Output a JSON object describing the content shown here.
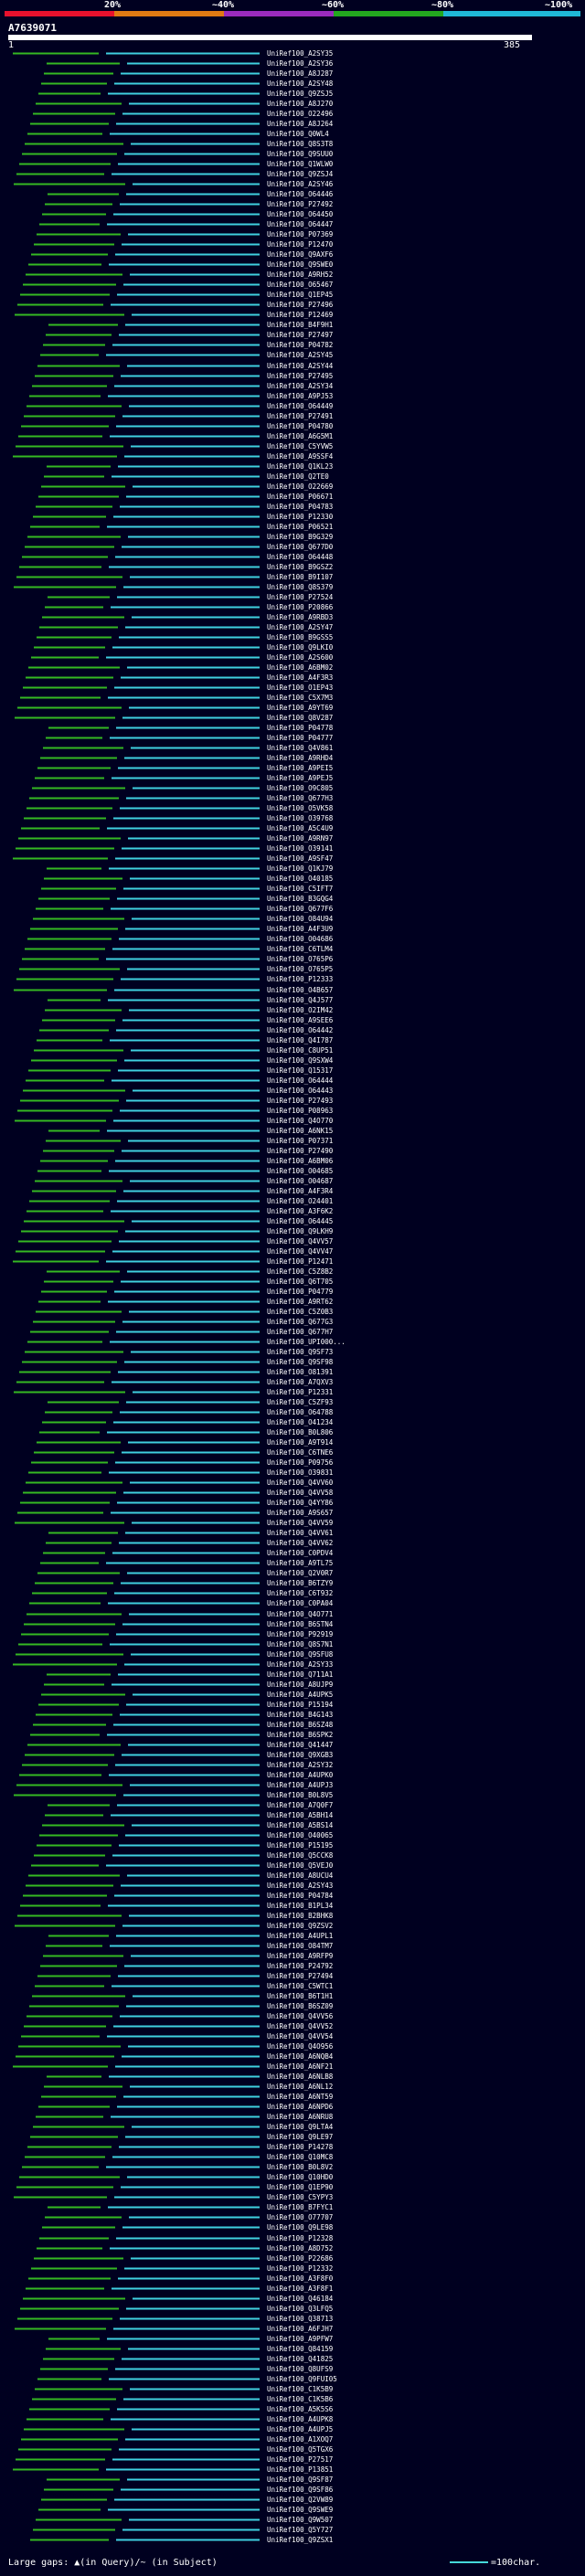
{
  "legend": {
    "scale_labels": [
      "20%",
      "~40%",
      "~60%",
      "~80%",
      "~100%"
    ],
    "scale_colors": [
      "#e8112d",
      "#e07a13",
      "#9a2bbd",
      "#23a81f",
      "#1fb8d6"
    ]
  },
  "header": {
    "query_id": "A7639071",
    "ruler_start": "1",
    "ruler_end": "385"
  },
  "hits": [
    {
      "label": "UniRef100_A2SY35",
      "color": "green"
    },
    {
      "label": "UniRef100_A2SY36",
      "color": "green"
    },
    {
      "label": "UniRef100_A8J287",
      "color": "green"
    },
    {
      "label": "UniRef100_A2SY48",
      "color": "green"
    },
    {
      "label": "UniRef100_Q9ZSJ5",
      "color": "green"
    },
    {
      "label": "UniRef100_A8J270",
      "color": "green"
    },
    {
      "label": "UniRef100_O22496",
      "color": "green"
    },
    {
      "label": "UniRef100_A8J264",
      "color": "green"
    },
    {
      "label": "UniRef100_Q0WL4",
      "color": "green"
    },
    {
      "label": "UniRef100_Q8S3T8",
      "color": "green"
    },
    {
      "label": "UniRef100_Q9SUU0",
      "color": "green"
    },
    {
      "label": "UniRef100_Q1WLW0",
      "color": "green"
    },
    {
      "label": "UniRef100_Q9ZSJ4",
      "color": "green"
    },
    {
      "label": "UniRef100_A2SY46",
      "color": "green"
    },
    {
      "label": "UniRef100_O64446",
      "color": "green"
    },
    {
      "label": "UniRef100_P27492",
      "color": "green"
    },
    {
      "label": "UniRef100_O64450",
      "color": "green"
    },
    {
      "label": "UniRef100_O64447",
      "color": "green"
    },
    {
      "label": "UniRef100_P07369",
      "color": "green"
    },
    {
      "label": "UniRef100_P12470",
      "color": "green"
    },
    {
      "label": "UniRef100_Q9AXF6",
      "color": "green"
    },
    {
      "label": "UniRef100_Q9SWE0",
      "color": "green"
    },
    {
      "label": "UniRef100_A9RH52",
      "color": "green"
    },
    {
      "label": "UniRef100_O65467",
      "color": "green"
    },
    {
      "label": "UniRef100_Q1EP45",
      "color": "green"
    },
    {
      "label": "UniRef100_P27496",
      "color": "green"
    },
    {
      "label": "UniRef100_P12469",
      "color": "green"
    },
    {
      "label": "UniRef100_B4F9H1",
      "color": "green"
    },
    {
      "label": "UniRef100_P27497",
      "color": "green"
    },
    {
      "label": "UniRef100_P04782",
      "color": "green"
    },
    {
      "label": "UniRef100_A2SY45",
      "color": "green"
    },
    {
      "label": "UniRef100_A2SY44",
      "color": "green"
    },
    {
      "label": "UniRef100_P27495",
      "color": "green"
    },
    {
      "label": "UniRef100_A2SY34",
      "color": "green"
    },
    {
      "label": "UniRef100_A9PJ53",
      "color": "green"
    },
    {
      "label": "UniRef100_O64449",
      "color": "green"
    },
    {
      "label": "UniRef100_P27491",
      "color": "green"
    },
    {
      "label": "UniRef100_P04780",
      "color": "green"
    },
    {
      "label": "UniRef100_A6G5M1",
      "color": "green"
    },
    {
      "label": "UniRef100_C5YVW5",
      "color": "green"
    },
    {
      "label": "UniRef100_A9SSF4",
      "color": "green"
    },
    {
      "label": "UniRef100_Q1KL23",
      "color": "green"
    },
    {
      "label": "UniRef100_Q2TE0",
      "color": "green"
    },
    {
      "label": "UniRef100_O22669",
      "color": "green"
    },
    {
      "label": "UniRef100_P06671",
      "color": "green"
    },
    {
      "label": "UniRef100_P04783",
      "color": "green"
    },
    {
      "label": "UniRef100_P12330",
      "color": "green"
    },
    {
      "label": "UniRef100_P06521",
      "color": "green"
    },
    {
      "label": "UniRef100_B9G329",
      "color": "green"
    },
    {
      "label": "UniRef100_Q677D0",
      "color": "green"
    },
    {
      "label": "UniRef100_O64448",
      "color": "green"
    },
    {
      "label": "UniRef100_B9GSZ2",
      "color": "green"
    },
    {
      "label": "UniRef100_B9I107",
      "color": "green"
    },
    {
      "label": "UniRef100_Q8S379",
      "color": "green"
    },
    {
      "label": "UniRef100_P27524",
      "color": "green"
    },
    {
      "label": "UniRef100_P20866",
      "color": "green"
    },
    {
      "label": "UniRef100_A9RBD3",
      "color": "green"
    },
    {
      "label": "UniRef100_A2SY47",
      "color": "green"
    },
    {
      "label": "UniRef100_B9GSS5",
      "color": "green"
    },
    {
      "label": "UniRef100_Q9LKI0",
      "color": "green"
    },
    {
      "label": "UniRef100_A2S600",
      "color": "green"
    },
    {
      "label": "UniRef100_A6BM02",
      "color": "green"
    },
    {
      "label": "UniRef100_A4F3R3",
      "color": "green"
    },
    {
      "label": "UniRef100_O1EP43",
      "color": "green"
    },
    {
      "label": "UniRef100_C5X7M3",
      "color": "green"
    },
    {
      "label": "UniRef100_A9YT69",
      "color": "green"
    },
    {
      "label": "UniRef100_Q8V287",
      "color": "green"
    },
    {
      "label": "UniRef100_P04778",
      "color": "green"
    },
    {
      "label": "UniRef100_P04777",
      "color": "green"
    },
    {
      "label": "UniRef100_Q4V861",
      "color": "green"
    },
    {
      "label": "UniRef100_A9RHD4",
      "color": "green"
    },
    {
      "label": "UniRef100_A9PEI5",
      "color": "green"
    },
    {
      "label": "UniRef100_A9PEJ5",
      "color": "green"
    },
    {
      "label": "UniRef100_O9C805",
      "color": "green"
    },
    {
      "label": "UniRef100_Q677H3",
      "color": "green"
    },
    {
      "label": "UniRef100_O5VK58",
      "color": "green"
    },
    {
      "label": "UniRef100_O39768",
      "color": "green"
    },
    {
      "label": "UniRef100_A5C4U9",
      "color": "green"
    },
    {
      "label": "UniRef100_A9RN97",
      "color": "green"
    },
    {
      "label": "UniRef100_O39141",
      "color": "green"
    },
    {
      "label": "UniRef100_A9SF47",
      "color": "green"
    },
    {
      "label": "UniRef100_Q1KJ79",
      "color": "green"
    },
    {
      "label": "UniRef100_O40185",
      "color": "green"
    },
    {
      "label": "UniRef100_C5IFT7",
      "color": "green"
    },
    {
      "label": "UniRef100_B3GQG4",
      "color": "green"
    },
    {
      "label": "UniRef100_Q677F6",
      "color": "green"
    },
    {
      "label": "UniRef100_O84U94",
      "color": "green"
    },
    {
      "label": "UniRef100_A4F3U9",
      "color": "green"
    },
    {
      "label": "UniRef100_O04686",
      "color": "green"
    },
    {
      "label": "UniRef100_C6TLM4",
      "color": "green"
    },
    {
      "label": "UniRef100_O765P6",
      "color": "green"
    },
    {
      "label": "UniRef100_O765P5",
      "color": "green"
    },
    {
      "label": "UniRef100_P12333",
      "color": "green"
    },
    {
      "label": "UniRef100_O4B657",
      "color": "green"
    },
    {
      "label": "UniRef100_Q4J577",
      "color": "green"
    },
    {
      "label": "UniRef100_O2IM42",
      "color": "green"
    },
    {
      "label": "UniRef100_A9SEE6",
      "color": "green"
    },
    {
      "label": "UniRef100_O64442",
      "color": "green"
    },
    {
      "label": "UniRef100_Q4I787",
      "color": "green"
    },
    {
      "label": "UniRef100_C8UP51",
      "color": "green"
    },
    {
      "label": "UniRef100_Q9SXW4",
      "color": "green"
    },
    {
      "label": "UniRef100_Q15317",
      "color": "green"
    },
    {
      "label": "UniRef100_O64444",
      "color": "green"
    },
    {
      "label": "UniRef100_O64443",
      "color": "green"
    },
    {
      "label": "UniRef100_P27493",
      "color": "green"
    },
    {
      "label": "UniRef100_P08963",
      "color": "green"
    },
    {
      "label": "UniRef100_Q4O770",
      "color": "green"
    },
    {
      "label": "UniRef100_A6NK15",
      "color": "green"
    },
    {
      "label": "UniRef100_P07371",
      "color": "green"
    },
    {
      "label": "UniRef100_P27490",
      "color": "green"
    },
    {
      "label": "UniRef100_A6BM06",
      "color": "green"
    },
    {
      "label": "UniRef100_O04685",
      "color": "green"
    },
    {
      "label": "UniRef100_O04687",
      "color": "green"
    },
    {
      "label": "UniRef100_A4F3R4",
      "color": "green"
    },
    {
      "label": "UniRef100_O24401",
      "color": "green"
    },
    {
      "label": "UniRef100_A3F6K2",
      "color": "green"
    },
    {
      "label": "UniRef100_O64445",
      "color": "green"
    },
    {
      "label": "UniRef100_Q9LKH9",
      "color": "green"
    },
    {
      "label": "UniRef100_Q4VV57",
      "color": "green"
    },
    {
      "label": "UniRef100_Q4VV47",
      "color": "green"
    },
    {
      "label": "UniRef100_P12471",
      "color": "green"
    },
    {
      "label": "UniRef100_C5Z8B2",
      "color": "green"
    },
    {
      "label": "UniRef100_Q6T705",
      "color": "green"
    },
    {
      "label": "UniRef100_P04779",
      "color": "green"
    },
    {
      "label": "UniRef100_A9RT62",
      "color": "green"
    },
    {
      "label": "UniRef100_C5Z0B3",
      "color": "green"
    },
    {
      "label": "UniRef100_Q677G3",
      "color": "green"
    },
    {
      "label": "UniRef100_Q677H7",
      "color": "green"
    },
    {
      "label": "UniRef100_UPI000...",
      "color": "green"
    },
    {
      "label": "UniRef100_Q9SF73",
      "color": "green"
    },
    {
      "label": "UniRef100_Q9SF98",
      "color": "green"
    },
    {
      "label": "UniRef100_O81391",
      "color": "green"
    },
    {
      "label": "UniRef100_A7QXV3",
      "color": "green"
    },
    {
      "label": "UniRef100_P12331",
      "color": "green"
    },
    {
      "label": "UniRef100_C5ZF93",
      "color": "green"
    },
    {
      "label": "UniRef100_O64788",
      "color": "green"
    },
    {
      "label": "UniRef100_O41234",
      "color": "green"
    },
    {
      "label": "UniRef100_B0L806",
      "color": "green"
    },
    {
      "label": "UniRef100_A9T914",
      "color": "green"
    },
    {
      "label": "UniRef100_C6TNE6",
      "color": "green"
    },
    {
      "label": "UniRef100_P09756",
      "color": "green"
    },
    {
      "label": "UniRef100_O39831",
      "color": "green"
    },
    {
      "label": "UniRef100_Q4VV60",
      "color": "green"
    },
    {
      "label": "UniRef100_Q4VV58",
      "color": "green"
    },
    {
      "label": "UniRef100_Q4YY86",
      "color": "green"
    },
    {
      "label": "UniRef100_A9S657",
      "color": "green"
    },
    {
      "label": "UniRef100_Q4VV59",
      "color": "green"
    },
    {
      "label": "UniRef100_Q4VV61",
      "color": "green"
    },
    {
      "label": "UniRef100_Q4VV62",
      "color": "green"
    },
    {
      "label": "UniRef100_C0PDV4",
      "color": "green"
    },
    {
      "label": "UniRef100_A9TL75",
      "color": "green"
    },
    {
      "label": "UniRef100_Q2V0R7",
      "color": "green"
    },
    {
      "label": "UniRef100_B6TZY9",
      "color": "green"
    },
    {
      "label": "UniRef100_C6T932",
      "color": "green"
    },
    {
      "label": "UniRef100_C0PA04",
      "color": "green"
    },
    {
      "label": "UniRef100_Q4O771",
      "color": "green"
    },
    {
      "label": "UniRef100_B6STN4",
      "color": "green"
    },
    {
      "label": "UniRef100_P92919",
      "color": "green"
    },
    {
      "label": "UniRef100_Q8S7N1",
      "color": "green"
    },
    {
      "label": "UniRef100_Q9SFU8",
      "color": "green"
    },
    {
      "label": "UniRef100_A2SY33",
      "color": "green"
    },
    {
      "label": "UniRef100_Q711A1",
      "color": "green"
    },
    {
      "label": "UniRef100_A8UJP9",
      "color": "green"
    },
    {
      "label": "UniRef100_A4UPK5",
      "color": "green"
    },
    {
      "label": "UniRef100_P15194",
      "color": "green"
    },
    {
      "label": "UniRef100_B4G143",
      "color": "green"
    },
    {
      "label": "UniRef100_B6SZ48",
      "color": "green"
    },
    {
      "label": "UniRef100_B6SPK2",
      "color": "green"
    },
    {
      "label": "UniRef100_Q41447",
      "color": "green"
    },
    {
      "label": "UniRef100_Q9XGB3",
      "color": "green"
    },
    {
      "label": "UniRef100_A2SY32",
      "color": "green"
    },
    {
      "label": "UniRef100_A4UPK0",
      "color": "green"
    },
    {
      "label": "UniRef100_A4UPJ3",
      "color": "green"
    },
    {
      "label": "UniRef100_B0L8V5",
      "color": "green"
    },
    {
      "label": "UniRef100_A7Q0F7",
      "color": "green"
    },
    {
      "label": "UniRef100_A5BH14",
      "color": "green"
    },
    {
      "label": "UniRef100_A5BS14",
      "color": "green"
    },
    {
      "label": "UniRef100_O40065",
      "color": "green"
    },
    {
      "label": "UniRef100_P15195",
      "color": "green"
    },
    {
      "label": "UniRef100_Q5CCK8",
      "color": "green"
    },
    {
      "label": "UniRef100_Q5VEJ0",
      "color": "green"
    },
    {
      "label": "UniRef100_A8UCU4",
      "color": "green"
    },
    {
      "label": "UniRef100_A2SY43",
      "color": "green"
    },
    {
      "label": "UniRef100_P04784",
      "color": "green"
    },
    {
      "label": "UniRef100_B1PL34",
      "color": "green"
    },
    {
      "label": "UniRef100_B2BHK8",
      "color": "green"
    },
    {
      "label": "UniRef100_Q9ZSV2",
      "color": "green"
    },
    {
      "label": "UniRef100_A4UPL1",
      "color": "green"
    },
    {
      "label": "UniRef100_O84TM7",
      "color": "green"
    },
    {
      "label": "UniRef100_A9RFP9",
      "color": "green"
    },
    {
      "label": "UniRef100_P24792",
      "color": "green"
    },
    {
      "label": "UniRef100_P27494",
      "color": "green"
    },
    {
      "label": "UniRef100_C5WTC1",
      "color": "green"
    },
    {
      "label": "UniRef100_B6T1H1",
      "color": "green"
    },
    {
      "label": "UniRef100_B6SZ09",
      "color": "green"
    },
    {
      "label": "UniRef100_Q4VV56",
      "color": "green"
    },
    {
      "label": "UniRef100_Q4VV52",
      "color": "green"
    },
    {
      "label": "UniRef100_Q4VV54",
      "color": "green"
    },
    {
      "label": "UniRef100_Q4O956",
      "color": "green"
    },
    {
      "label": "UniRef100_A6NQB4",
      "color": "green"
    },
    {
      "label": "UniRef100_A6NF21",
      "color": "green"
    },
    {
      "label": "UniRef100_A6NLB8",
      "color": "green"
    },
    {
      "label": "UniRef100_A6NL12",
      "color": "green"
    },
    {
      "label": "UniRef100_A6NT59",
      "color": "green"
    },
    {
      "label": "UniRef100_A6NPD6",
      "color": "green"
    },
    {
      "label": "UniRef100_A6NRU8",
      "color": "green"
    },
    {
      "label": "UniRef100_Q9LTA4",
      "color": "green"
    },
    {
      "label": "UniRef100_Q9LE97",
      "color": "green"
    },
    {
      "label": "UniRef100_P14278",
      "color": "green"
    },
    {
      "label": "UniRef100_Q10MC8",
      "color": "green"
    },
    {
      "label": "UniRef100_B0L8V2",
      "color": "green"
    },
    {
      "label": "UniRef100_Q10HD0",
      "color": "green"
    },
    {
      "label": "UniRef100_Q1EP90",
      "color": "green"
    },
    {
      "label": "UniRef100_C5YPY3",
      "color": "green"
    },
    {
      "label": "UniRef100_B7FYC1",
      "color": "green"
    },
    {
      "label": "UniRef100_O77707",
      "color": "green"
    },
    {
      "label": "UniRef100_Q9LE98",
      "color": "green"
    },
    {
      "label": "UniRef100_P12328",
      "color": "green"
    },
    {
      "label": "UniRef100_A8D752",
      "color": "green"
    },
    {
      "label": "UniRef100_P22686",
      "color": "green"
    },
    {
      "label": "UniRef100_P12332",
      "color": "green"
    },
    {
      "label": "UniRef100_A3F8F0",
      "color": "green"
    },
    {
      "label": "UniRef100_A3F8F1",
      "color": "green"
    },
    {
      "label": "UniRef100_Q46184",
      "color": "green"
    },
    {
      "label": "UniRef100_Q3LFQ5",
      "color": "green"
    },
    {
      "label": "UniRef100_Q38713",
      "color": "green"
    },
    {
      "label": "UniRef100_A6FJH7",
      "color": "green"
    },
    {
      "label": "UniRef100_A9PFW7",
      "color": "green"
    },
    {
      "label": "UniRef100_Q84159",
      "color": "green"
    },
    {
      "label": "UniRef100_Q41825",
      "color": "green"
    },
    {
      "label": "UniRef100_Q8UFS9",
      "color": "green"
    },
    {
      "label": "UniRef100_Q9FUI05",
      "color": "green"
    },
    {
      "label": "UniRef100_C1K5B9",
      "color": "green"
    },
    {
      "label": "UniRef100_C1K5B6",
      "color": "green"
    },
    {
      "label": "UniRef100_A5K5S6",
      "color": "green"
    },
    {
      "label": "UniRef100_A4UPK8",
      "color": "green"
    },
    {
      "label": "UniRef100_A4UPJ5",
      "color": "green"
    },
    {
      "label": "UniRef100_A1XOQ7",
      "color": "green"
    },
    {
      "label": "UniRef100_Q5TGX6",
      "color": "green"
    },
    {
      "label": "UniRef100_P27517",
      "color": "green"
    },
    {
      "label": "UniRef100_P13851",
      "color": "green"
    },
    {
      "label": "UniRef100_Q9SF87",
      "color": "green"
    },
    {
      "label": "UniRef100_Q9SF86",
      "color": "green"
    },
    {
      "label": "UniRef100_Q2VW89",
      "color": "green"
    },
    {
      "label": "UniRef100_Q9SWE9",
      "color": "green"
    },
    {
      "label": "UniRef100_Q9W507",
      "color": "green"
    },
    {
      "label": "UniRef100_Q5Y727",
      "color": "green"
    },
    {
      "label": "UniRef100_Q9ZSX1",
      "color": "green"
    }
  ],
  "footer": {
    "left": "Large gaps: ▲(in Query)/~ (in Subject)",
    "right": "=100char."
  }
}
